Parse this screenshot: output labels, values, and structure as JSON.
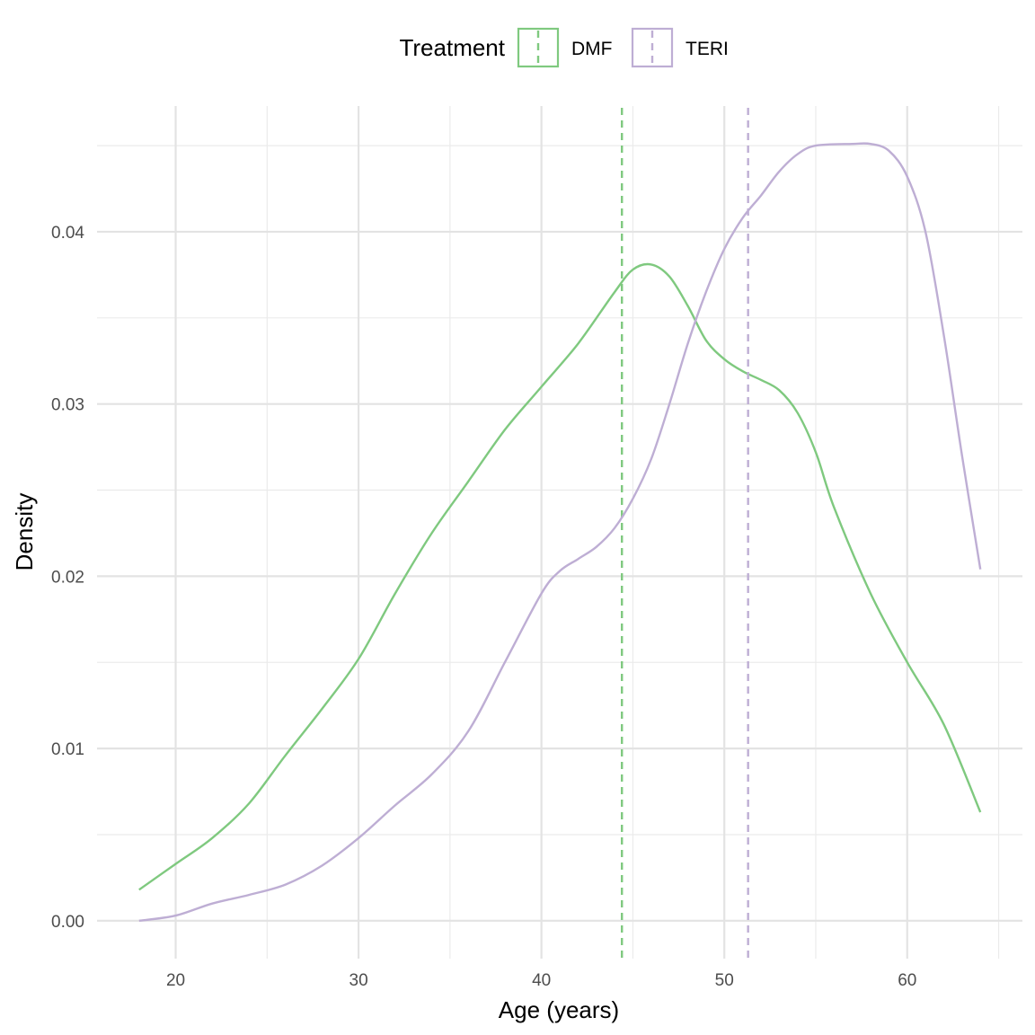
{
  "chart_data": {
    "type": "line",
    "title": "",
    "xlabel": "Age (years)",
    "ylabel": "Density",
    "xlim": [
      15.7,
      66.3
    ],
    "ylim": [
      -0.0022,
      0.0473
    ],
    "x_ticks": [
      20,
      30,
      40,
      50,
      60
    ],
    "x_tick_labels": [
      "20",
      "30",
      "40",
      "50",
      "60"
    ],
    "x_minor": [
      25,
      35,
      45,
      55,
      65
    ],
    "y_ticks": [
      0.0,
      0.01,
      0.02,
      0.03,
      0.04
    ],
    "y_tick_labels": [
      "0.00",
      "0.01",
      "0.02",
      "0.03",
      "0.04"
    ],
    "y_minor": [
      0.005,
      0.015,
      0.025,
      0.035,
      0.045
    ],
    "grid": true,
    "legend": {
      "title": "Treatment",
      "position": "top",
      "entries": [
        "DMF",
        "TERI"
      ]
    },
    "series": [
      {
        "name": "DMF",
        "color": "#7fc97f",
        "mean_line": 44.4,
        "points": [
          [
            18,
            0.0018
          ],
          [
            20,
            0.0033
          ],
          [
            22,
            0.0048
          ],
          [
            24,
            0.0068
          ],
          [
            26,
            0.0096
          ],
          [
            28,
            0.0123
          ],
          [
            30,
            0.0152
          ],
          [
            32,
            0.019
          ],
          [
            34,
            0.0225
          ],
          [
            36,
            0.0255
          ],
          [
            38,
            0.0285
          ],
          [
            40,
            0.031
          ],
          [
            42,
            0.0335
          ],
          [
            44,
            0.0365
          ],
          [
            45,
            0.0378
          ],
          [
            46,
            0.0381
          ],
          [
            47,
            0.0374
          ],
          [
            48,
            0.0357
          ],
          [
            49,
            0.0337
          ],
          [
            50,
            0.0326
          ],
          [
            51,
            0.0319
          ],
          [
            52,
            0.0314
          ],
          [
            53,
            0.0308
          ],
          [
            54,
            0.0295
          ],
          [
            55,
            0.0272
          ],
          [
            56,
            0.024
          ],
          [
            58,
            0.019
          ],
          [
            60,
            0.015
          ],
          [
            62,
            0.0114
          ],
          [
            64,
            0.0063
          ]
        ]
      },
      {
        "name": "TERI",
        "color": "#beaed4",
        "mean_line": 51.3,
        "points": [
          [
            18,
            0.0
          ],
          [
            20,
            0.0003
          ],
          [
            22,
            0.001
          ],
          [
            24,
            0.0015
          ],
          [
            26,
            0.0021
          ],
          [
            28,
            0.0032
          ],
          [
            30,
            0.0048
          ],
          [
            32,
            0.0067
          ],
          [
            34,
            0.0085
          ],
          [
            36,
            0.011
          ],
          [
            38,
            0.015
          ],
          [
            40,
            0.019
          ],
          [
            41,
            0.0203
          ],
          [
            42,
            0.021
          ],
          [
            43,
            0.0217
          ],
          [
            44,
            0.0228
          ],
          [
            45,
            0.0245
          ],
          [
            46,
            0.0268
          ],
          [
            47,
            0.03
          ],
          [
            48,
            0.0335
          ],
          [
            49,
            0.0365
          ],
          [
            50,
            0.039
          ],
          [
            51,
            0.0408
          ],
          [
            52,
            0.0421
          ],
          [
            53,
            0.0435
          ],
          [
            54,
            0.0445
          ],
          [
            55,
            0.045
          ],
          [
            57,
            0.0451
          ],
          [
            58,
            0.0451
          ],
          [
            59,
            0.0447
          ],
          [
            60,
            0.0432
          ],
          [
            61,
            0.04
          ],
          [
            62,
            0.034
          ],
          [
            63,
            0.027
          ],
          [
            64,
            0.0204
          ]
        ]
      }
    ]
  }
}
